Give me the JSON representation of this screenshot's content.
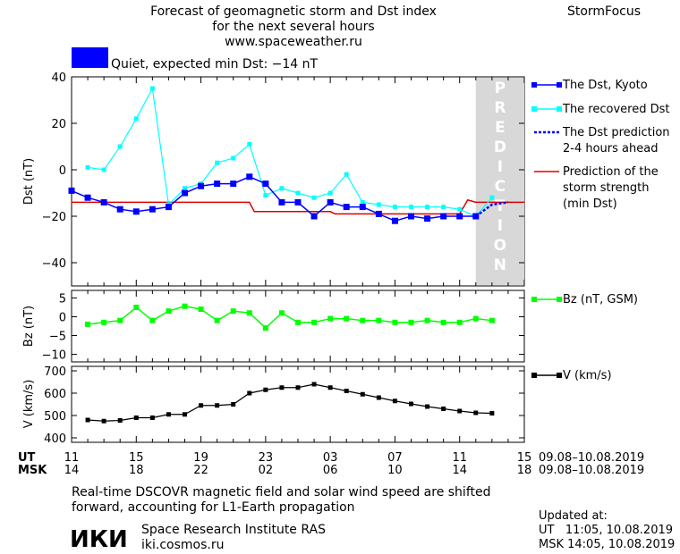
{
  "header": {
    "title_lines": [
      "Forecast of geomagnetic storm and Dst index",
      "for the next several hours",
      "www.spaceweather.ru"
    ],
    "brand": "StormFocus",
    "status_text": "Quiet, expected min Dst: −14 nT",
    "status_color": "#0000ff"
  },
  "colors": {
    "dst": "#0000ff",
    "recovered": "#00ffff",
    "prediction": "#0000ff",
    "strength": "#dd0000",
    "bz": "#00ff00",
    "v": "#000000",
    "prediction_band": "#d8d8d8"
  },
  "chart_data": [
    {
      "type": "line",
      "id": "dst",
      "ylabel": "Dst (nT)",
      "ylim": [
        -50,
        40
      ],
      "yticks": [
        -40,
        -20,
        0,
        20,
        40
      ],
      "xlim": [
        11,
        39
      ],
      "prediction_from": 36,
      "prediction_label": "PREDICTION",
      "series": [
        {
          "name": "The Dst, Kyoto",
          "x": [
            11,
            12,
            13,
            14,
            15,
            16,
            17,
            18,
            19,
            20,
            21,
            22,
            23,
            24,
            25,
            26,
            27,
            28,
            29,
            30,
            31,
            32,
            33,
            34,
            35,
            36
          ],
          "values": [
            -9,
            -12,
            -14,
            -17,
            -18,
            -17,
            -16,
            -10,
            -7,
            -6,
            -6,
            -3,
            -6,
            -14,
            -14,
            -20,
            -14,
            -16,
            -16,
            -19,
            -22,
            -20,
            -21,
            -20,
            -20,
            -20
          ]
        },
        {
          "name": "The recovered Dst",
          "x": [
            12,
            13,
            14,
            15,
            16,
            17,
            18,
            19,
            20,
            21,
            22,
            23,
            24,
            25,
            26,
            27,
            28,
            29,
            30,
            31,
            32,
            33,
            34,
            35,
            36,
            37
          ],
          "values": [
            1,
            0,
            10,
            22,
            35,
            -15,
            -8,
            -6,
            3,
            5,
            11,
            -11,
            -8,
            -10,
            -12,
            -10,
            -2,
            -14,
            -15,
            -16,
            -16,
            -16,
            -16,
            -17,
            -20,
            -12
          ]
        },
        {
          "name": "The Dst prediction\n2-4 hours ahead",
          "x": [
            36,
            37,
            38
          ],
          "values": [
            -20,
            -15,
            -14
          ]
        },
        {
          "name": "Prediction of the\nstorm strength\n(min Dst)",
          "x": [
            11,
            22,
            22.3,
            27,
            27.3,
            35,
            35.5,
            36,
            39
          ],
          "values": [
            -14,
            -14,
            -18,
            -18,
            -19,
            -19,
            -13,
            -14,
            -14
          ]
        }
      ]
    },
    {
      "type": "line",
      "id": "bz",
      "ylabel": "Bz (nT)",
      "ylim": [
        -12,
        7
      ],
      "yticks": [
        -10,
        -5,
        0,
        5
      ],
      "series": [
        {
          "name": "Bz (nT, GSM)",
          "x": [
            12,
            13,
            14,
            15,
            16,
            17,
            18,
            19,
            20,
            21,
            22,
            23,
            24,
            25,
            26,
            27,
            28,
            29,
            30,
            31,
            32,
            33,
            34,
            35,
            36,
            37
          ],
          "values": [
            -2,
            -1.5,
            -1,
            2.5,
            -1,
            1.5,
            2.8,
            2,
            -1,
            1.5,
            1,
            -3,
            1,
            -1.5,
            -1.5,
            -0.5,
            -0.5,
            -1,
            -1,
            -1.5,
            -1.5,
            -1,
            -1.5,
            -1.5,
            -0.5,
            -1
          ]
        }
      ]
    },
    {
      "type": "line",
      "id": "v",
      "ylabel": "V (km/s)",
      "ylim": [
        380,
        720
      ],
      "yticks": [
        400,
        500,
        600,
        700
      ],
      "series": [
        {
          "name": "V (km/s)",
          "x": [
            12,
            13,
            14,
            15,
            16,
            17,
            18,
            19,
            20,
            21,
            22,
            23,
            24,
            25,
            26,
            27,
            28,
            29,
            30,
            31,
            32,
            33,
            34,
            35,
            36,
            37
          ],
          "values": [
            480,
            475,
            478,
            490,
            490,
            505,
            505,
            545,
            545,
            550,
            600,
            615,
            625,
            625,
            640,
            625,
            610,
            595,
            580,
            565,
            552,
            540,
            530,
            520,
            512,
            510
          ]
        }
      ]
    }
  ],
  "time_axis": {
    "ut_label": "UT",
    "msk_label": "MSK",
    "ut_ticks": [
      "11",
      "15",
      "19",
      "23",
      "03",
      "07",
      "11",
      "15"
    ],
    "msk_ticks": [
      "14",
      "18",
      "22",
      "02",
      "06",
      "10",
      "14",
      "18"
    ],
    "ut_range": "09.08–10.08.2019",
    "msk_range": "09.08–10.08.2019"
  },
  "footer": {
    "note_lines": [
      "Real-time DSCOVR magnetic field and solar wind speed are shifted",
      "forward, accounting for L1-Earth propagation"
    ],
    "logo_text": "ИКИ",
    "institute": "Space Research Institute RAS",
    "site": "iki.cosmos.ru",
    "updated_label": "Updated at:",
    "updated_ut": "UT   11:05, 10.08.2019",
    "updated_msk": "MSK 14:05, 10.08.2019"
  }
}
